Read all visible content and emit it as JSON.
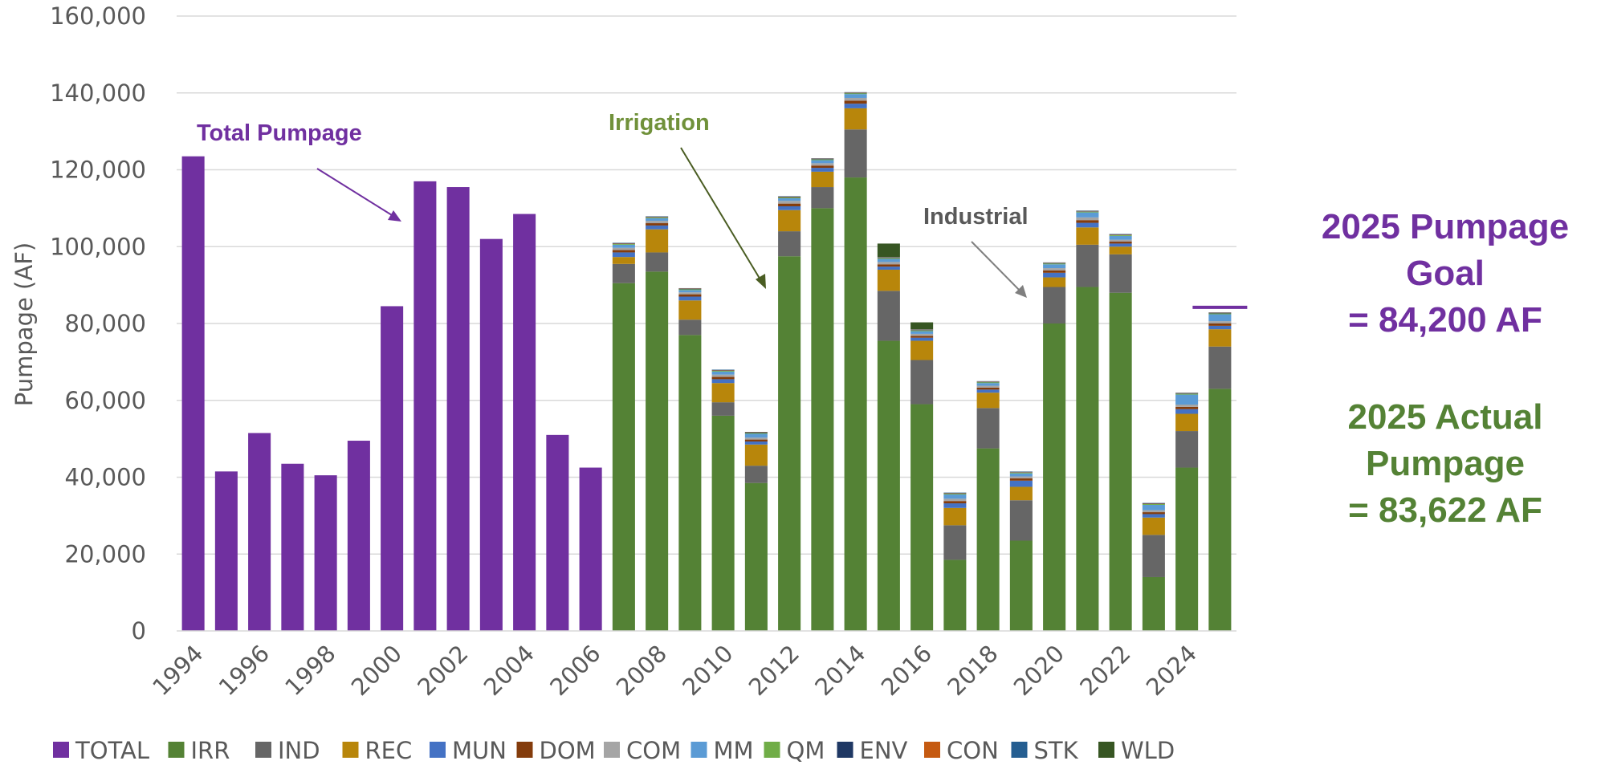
{
  "chart_data": {
    "type": "bar",
    "stacked": true,
    "ylabel": "Pumpage (AF)",
    "ylim": [
      0,
      160000
    ],
    "yticks": [
      0,
      20000,
      40000,
      60000,
      80000,
      100000,
      120000,
      140000,
      160000
    ],
    "ytick_labels": [
      "0",
      "20,000",
      "40,000",
      "60,000",
      "80,000",
      "100,000",
      "120,000",
      "140,000",
      "160,000"
    ],
    "categories": [
      1994,
      1995,
      1996,
      1997,
      1998,
      1999,
      2000,
      2001,
      2002,
      2003,
      2004,
      2005,
      2006,
      2007,
      2008,
      2009,
      2010,
      2011,
      2012,
      2013,
      2014,
      2015,
      2016,
      2017,
      2018,
      2019,
      2020,
      2021,
      2022,
      2023,
      2024,
      2025
    ],
    "xtick_labels": [
      "1994",
      "1996",
      "1998",
      "2000",
      "2002",
      "2004",
      "2006",
      "2008",
      "2010",
      "2012",
      "2014",
      "2016",
      "2018",
      "2020",
      "2022",
      "2024"
    ],
    "grid": true,
    "legend_position": "bottom",
    "series": [
      {
        "name": "TOTAL",
        "color": "#7030A0",
        "values": [
          123500,
          41500,
          51500,
          43500,
          40500,
          49500,
          84500,
          117000,
          115500,
          102000,
          108500,
          51000,
          42500,
          0,
          0,
          0,
          0,
          0,
          0,
          0,
          0,
          0,
          0,
          0,
          0,
          0,
          0,
          0,
          0,
          0,
          0,
          0
        ]
      },
      {
        "name": "IRR",
        "color": "#548235",
        "values": [
          0,
          0,
          0,
          0,
          0,
          0,
          0,
          0,
          0,
          0,
          0,
          0,
          0,
          90500,
          93500,
          77000,
          56000,
          38500,
          97500,
          110000,
          118000,
          75500,
          59000,
          18500,
          47500,
          23500,
          80000,
          89500,
          88000,
          14000,
          42500,
          63000
        ]
      },
      {
        "name": "IND",
        "color": "#666666",
        "values": [
          0,
          0,
          0,
          0,
          0,
          0,
          0,
          0,
          0,
          0,
          0,
          0,
          0,
          5000,
          5000,
          4000,
          3500,
          4500,
          6500,
          5500,
          12500,
          13000,
          11500,
          9000,
          10500,
          10500,
          9500,
          11000,
          10000,
          11000,
          9500,
          11000
        ]
      },
      {
        "name": "REC",
        "color": "#B8860B",
        "values": [
          0,
          0,
          0,
          0,
          0,
          0,
          0,
          0,
          0,
          0,
          0,
          0,
          0,
          1800,
          6000,
          5000,
          5000,
          5500,
          5500,
          4000,
          5500,
          5500,
          5000,
          4500,
          4000,
          3500,
          2500,
          4500,
          2000,
          4500,
          4500,
          4500
        ]
      },
      {
        "name": "MUN",
        "color": "#4472C4",
        "values": [
          0,
          0,
          0,
          0,
          0,
          0,
          0,
          0,
          0,
          0,
          0,
          0,
          0,
          1200,
          1000,
          1000,
          1000,
          800,
          1000,
          1000,
          1200,
          800,
          800,
          1200,
          800,
          1600,
          1200,
          1200,
          800,
          900,
          1200,
          900
        ]
      },
      {
        "name": "DOM",
        "color": "#843C0C",
        "values": [
          0,
          0,
          0,
          0,
          0,
          0,
          0,
          0,
          0,
          0,
          0,
          0,
          0,
          600,
          600,
          600,
          600,
          500,
          700,
          600,
          800,
          600,
          500,
          600,
          500,
          600,
          600,
          700,
          500,
          500,
          600,
          600
        ]
      },
      {
        "name": "COM",
        "color": "#A5A5A5",
        "values": [
          0,
          0,
          0,
          0,
          0,
          0,
          0,
          0,
          0,
          0,
          0,
          0,
          0,
          600,
          600,
          500,
          600,
          500,
          700,
          600,
          700,
          600,
          500,
          600,
          500,
          500,
          600,
          700,
          500,
          500,
          600,
          600
        ]
      },
      {
        "name": "MM",
        "color": "#5B9BD5",
        "values": [
          0,
          0,
          0,
          0,
          0,
          0,
          0,
          0,
          0,
          0,
          0,
          0,
          0,
          800,
          700,
          600,
          800,
          1000,
          700,
          800,
          1000,
          800,
          700,
          1100,
          700,
          800,
          1000,
          1300,
          1000,
          1400,
          2600,
          1800
        ]
      },
      {
        "name": "QM",
        "color": "#70AD47",
        "values": [
          0,
          0,
          0,
          0,
          0,
          0,
          0,
          0,
          0,
          0,
          0,
          0,
          0,
          200,
          200,
          200,
          200,
          200,
          200,
          200,
          200,
          200,
          200,
          200,
          200,
          200,
          200,
          200,
          200,
          200,
          200,
          200
        ]
      },
      {
        "name": "ENV",
        "color": "#1F3864",
        "values": [
          0,
          0,
          0,
          0,
          0,
          0,
          0,
          0,
          0,
          0,
          0,
          0,
          0,
          100,
          100,
          100,
          100,
          100,
          100,
          100,
          100,
          100,
          100,
          100,
          100,
          100,
          100,
          100,
          100,
          100,
          100,
          100
        ]
      },
      {
        "name": "CON",
        "color": "#C55A11",
        "values": [
          0,
          0,
          0,
          0,
          0,
          0,
          0,
          0,
          0,
          0,
          0,
          0,
          0,
          100,
          100,
          100,
          100,
          100,
          100,
          100,
          100,
          100,
          100,
          100,
          100,
          100,
          100,
          100,
          100,
          100,
          100,
          100
        ]
      },
      {
        "name": "STK",
        "color": "#255E91",
        "values": [
          0,
          0,
          0,
          0,
          0,
          0,
          0,
          0,
          0,
          0,
          0,
          0,
          0,
          100,
          100,
          100,
          100,
          100,
          100,
          100,
          100,
          100,
          100,
          100,
          100,
          100,
          100,
          100,
          100,
          100,
          100,
          100
        ]
      },
      {
        "name": "WLD",
        "color": "#375623",
        "values": [
          0,
          0,
          0,
          0,
          0,
          0,
          0,
          0,
          0,
          0,
          0,
          0,
          0,
          0,
          0,
          0,
          0,
          0,
          0,
          0,
          0,
          3500,
          1800,
          0,
          0,
          0,
          0,
          0,
          0,
          0,
          0,
          0
        ]
      }
    ],
    "goal_marker": {
      "category": 2025,
      "value": 84200,
      "color": "#7030A0"
    },
    "annotations": [
      {
        "text": "Total Pumpage",
        "color": "#7030A0"
      },
      {
        "text": "Irrigation",
        "color": "#70913A"
      },
      {
        "text": "Industrial",
        "color": "#595959"
      }
    ]
  },
  "side_text": {
    "goal_lines": [
      "2025 Pumpage",
      "Goal",
      "= 84,200 AF"
    ],
    "goal_color": "#7030A0",
    "actual_lines": [
      "2025 Actual",
      "Pumpage",
      "= 83,622 AF"
    ],
    "actual_color": "#548235"
  }
}
